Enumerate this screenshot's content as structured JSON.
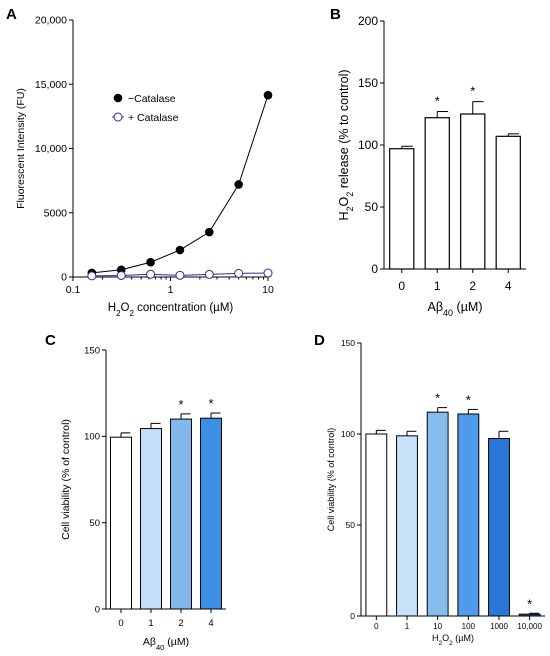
{
  "chart_data": [
    {
      "panel": "A",
      "type": "line",
      "x_scale": "log",
      "x": [
        0.156,
        0.3125,
        0.625,
        1.25,
        2.5,
        5,
        10
      ],
      "xlim": [
        0.1,
        10
      ],
      "ylim": [
        0,
        20000
      ],
      "x_ticks": [
        0.1,
        1,
        10
      ],
      "x_tick_labels": [
        "0.1",
        "1",
        "10"
      ],
      "y_ticks": [
        0,
        5000,
        10000,
        15000,
        20000
      ],
      "y_tick_labels": [
        "0",
        "5000",
        "10,000",
        "15,000",
        "20,000"
      ],
      "ylabel": "Fluorescent Intensity (FU)",
      "xlabel": {
        "prefix": "H",
        "sub1": "2",
        "mid": "O",
        "sub2": "2",
        "suffix": " concentration (µM)"
      },
      "series": [
        {
          "name": "−Catalase",
          "color": "#000000",
          "marker": "filled-circle",
          "values": [
            320,
            560,
            1150,
            2100,
            3500,
            7200,
            14150
          ]
        },
        {
          "name": "+ Catalase",
          "color": "#2b2ba8",
          "marker": "open-circle",
          "values": [
            90,
            120,
            210,
            130,
            200,
            280,
            310
          ]
        }
      ],
      "legend": "upper-left"
    },
    {
      "panel": "B",
      "type": "bar",
      "categories": [
        "0",
        "1",
        "2",
        "4"
      ],
      "values": [
        97,
        122,
        125,
        107
      ],
      "errors": [
        2,
        5,
        10,
        2
      ],
      "significant": [
        false,
        true,
        true,
        false
      ],
      "sig_mark": "*",
      "ylim": [
        0,
        200
      ],
      "y_ticks": [
        0,
        50,
        100,
        150,
        200
      ],
      "ylabel": {
        "prefix": "H",
        "sub1": "2",
        "mid": "O",
        "sub2": "2",
        "suffix": " release (% to control)"
      },
      "xlabel": {
        "prefix": "Aβ",
        "sub": "40",
        "suffix": " (µM)"
      },
      "bar_colors": [
        "#ffffff",
        "#ffffff",
        "#ffffff",
        "#ffffff"
      ]
    },
    {
      "panel": "C",
      "type": "bar",
      "categories": [
        "0",
        "1",
        "2",
        "4"
      ],
      "values": [
        99.5,
        104.5,
        110,
        110.5
      ],
      "errors": [
        2.5,
        3,
        3,
        3
      ],
      "significant": [
        false,
        false,
        true,
        true
      ],
      "sig_mark": "*",
      "ylim": [
        0,
        150
      ],
      "y_ticks": [
        0,
        50,
        100,
        150
      ],
      "ylabel": "Cell viability (% of control)",
      "xlabel": {
        "prefix": "Aβ",
        "sub": "40",
        "suffix": " (µM)"
      },
      "bar_colors": [
        "#ffffff",
        "#c5dff8",
        "#82b8ec",
        "#3d8fe6"
      ]
    },
    {
      "panel": "D",
      "type": "bar",
      "categories": [
        "0",
        "1",
        "10",
        "100",
        "1000",
        "10,000"
      ],
      "values": [
        100,
        99,
        112,
        111,
        97.5,
        1
      ],
      "errors": [
        2,
        2.5,
        2.5,
        2.5,
        4,
        0.5
      ],
      "significant": [
        false,
        false,
        true,
        true,
        false,
        true
      ],
      "sig_mark": "*",
      "ylim": [
        0,
        150
      ],
      "y_ticks": [
        0,
        50,
        100,
        150
      ],
      "ylabel": "Cell viability (% of control)",
      "xlabel": {
        "prefix": "H",
        "sub1": "2",
        "mid": "O",
        "sub2": "2",
        "suffix": " (µM)"
      },
      "bar_colors": [
        "#ffffff",
        "#c9e1f9",
        "#86bcee",
        "#4f9ae9",
        "#2b76d6",
        "#1a5bb8"
      ]
    }
  ]
}
